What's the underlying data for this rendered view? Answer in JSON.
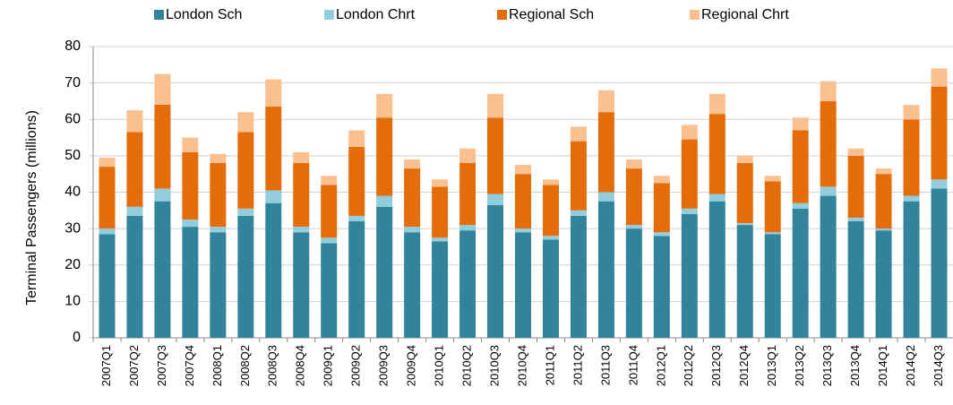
{
  "chart_data": {
    "type": "stacked-bar",
    "y_label": "Terminal Passengers (millions)",
    "categories": [
      "2007Q1",
      "2007Q2",
      "2007Q3",
      "2007Q4",
      "2008Q1",
      "2008Q2",
      "2008Q3",
      "2008Q4",
      "2009Q1",
      "2009Q2",
      "2009Q3",
      "2009Q4",
      "2010Q1",
      "2010Q2",
      "2010Q3",
      "2010Q4",
      "2011Q1",
      "2011Q2",
      "2011Q3",
      "2011Q4",
      "2012Q1",
      "2012Q2",
      "2012Q3",
      "2012Q4",
      "2013Q1",
      "2013Q2",
      "2013Q3",
      "2013Q4",
      "2014Q1",
      "2014Q2",
      "2014Q3"
    ],
    "series": [
      {
        "name": "London Sch",
        "color": "#31849b",
        "values": [
          28.5,
          33.5,
          37.5,
          30.5,
          29,
          33.5,
          37,
          29,
          26,
          32,
          36,
          29,
          26.5,
          29.5,
          36.5,
          29,
          27,
          33.5,
          37.5,
          30,
          28,
          34,
          37.5,
          31,
          28.5,
          35.5,
          39,
          32,
          29.5,
          37.5,
          41
        ]
      },
      {
        "name": "London Chrt",
        "color": "#92cddc",
        "values": [
          1.5,
          2.5,
          3.5,
          2,
          1.5,
          2,
          3.5,
          1.5,
          1.5,
          1.5,
          3,
          1.5,
          1,
          1.5,
          3,
          1,
          1,
          1.5,
          2.5,
          1,
          1,
          1.5,
          2,
          0.5,
          0.5,
          1.5,
          2.5,
          1,
          0.5,
          1.5,
          2.5
        ]
      },
      {
        "name": "Regional Sch",
        "color": "#e46c0a",
        "values": [
          17,
          20.5,
          23,
          18.5,
          17.5,
          21,
          23,
          17.5,
          14.5,
          19,
          21.5,
          16,
          14,
          17,
          21,
          15,
          14,
          19,
          22,
          15.5,
          13.5,
          19,
          22,
          16.5,
          14,
          20,
          23.5,
          17,
          15,
          21,
          25.5
        ]
      },
      {
        "name": "Regional Chrt",
        "color": "#fac090",
        "values": [
          2.5,
          6,
          8.5,
          4,
          2.5,
          5.5,
          7.5,
          3,
          2.5,
          4.5,
          6.5,
          2.5,
          2,
          4,
          6.5,
          2.5,
          1.5,
          4,
          6,
          2.5,
          2,
          4,
          5.5,
          2,
          1.5,
          3.5,
          5.5,
          2,
          1.5,
          4,
          5
        ]
      }
    ],
    "ylim": [
      0,
      80
    ],
    "yticks": [
      0,
      10,
      20,
      30,
      40,
      50,
      60,
      70,
      80
    ],
    "grid": true,
    "legend": "top"
  }
}
